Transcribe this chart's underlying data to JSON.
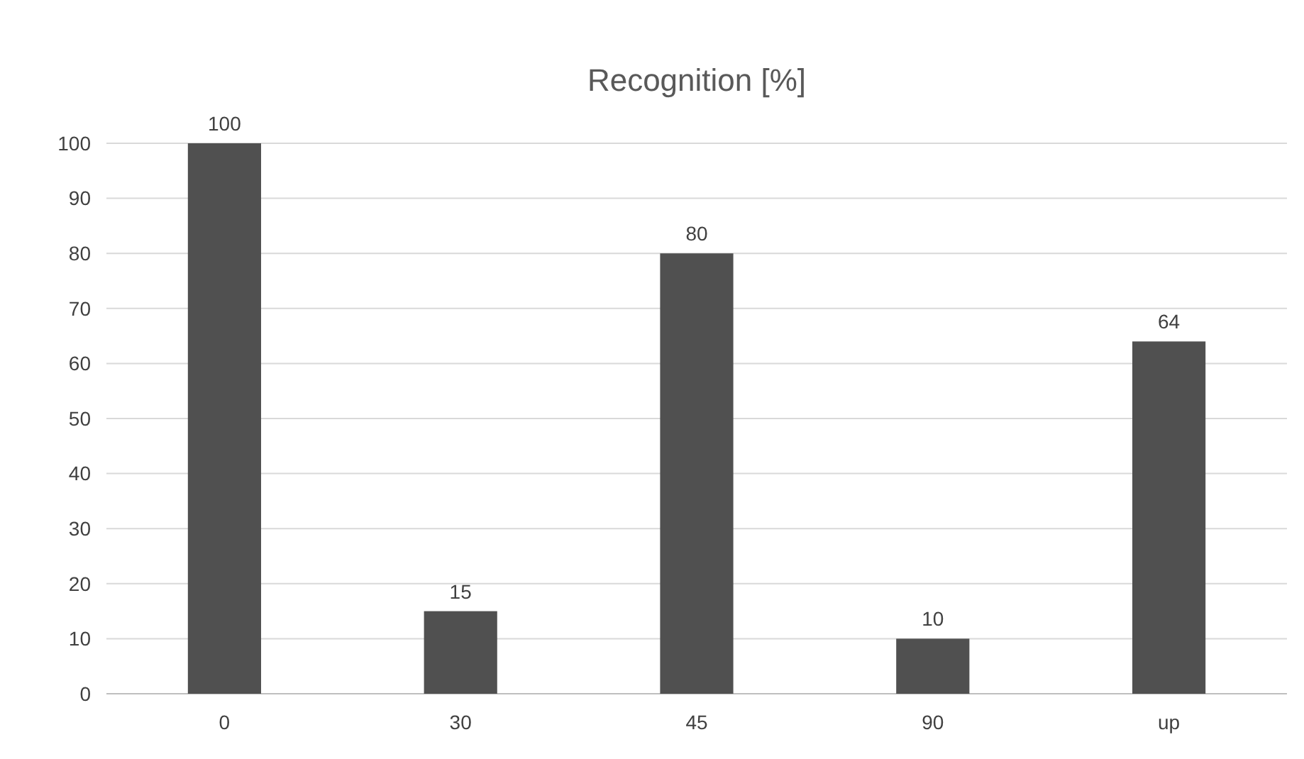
{
  "chart_data": {
    "type": "bar",
    "title": "Recognition [%]",
    "categories": [
      "0",
      "30",
      "45",
      "90",
      "up"
    ],
    "values": [
      100,
      15,
      80,
      10,
      64
    ],
    "color": "#505050",
    "ylim": [
      0,
      100
    ],
    "yticks": [
      0,
      10,
      20,
      30,
      40,
      50,
      60,
      70,
      80,
      90,
      100
    ],
    "grid": "y",
    "data_labels": true
  }
}
